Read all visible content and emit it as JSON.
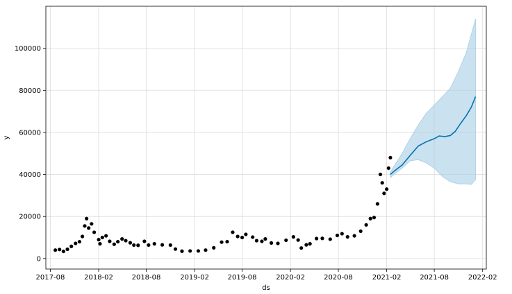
{
  "chart_data": {
    "type": "scatter",
    "title": "",
    "xlabel": "ds",
    "ylabel": "y",
    "grid": true,
    "xlim": [
      "2017-07-15",
      "2022-02-15"
    ],
    "ylim": [
      -5000,
      120000
    ],
    "x_ticks": [
      "2017-08",
      "2018-02",
      "2018-08",
      "2019-02",
      "2019-08",
      "2020-02",
      "2020-08",
      "2021-02",
      "2021-08",
      "2022-02"
    ],
    "y_ticks": [
      0,
      20000,
      40000,
      60000,
      80000,
      100000
    ],
    "colors": {
      "observed": "#000000",
      "forecast": "#0072B2",
      "interval": "#a6cde4"
    },
    "series": [
      {
        "kind": "observed points",
        "points": [
          [
            "2017-08-20",
            4000
          ],
          [
            "2017-09-05",
            4300
          ],
          [
            "2017-09-20",
            3400
          ],
          [
            "2017-10-05",
            4400
          ],
          [
            "2017-10-20",
            5800
          ],
          [
            "2017-11-05",
            7200
          ],
          [
            "2017-11-20",
            8000
          ],
          [
            "2017-12-01",
            10500
          ],
          [
            "2017-12-10",
            15500
          ],
          [
            "2017-12-17",
            19000
          ],
          [
            "2017-12-25",
            14500
          ],
          [
            "2018-01-05",
            16500
          ],
          [
            "2018-01-15",
            12500
          ],
          [
            "2018-02-01",
            9000
          ],
          [
            "2018-02-06",
            7000
          ],
          [
            "2018-02-15",
            10000
          ],
          [
            "2018-03-01",
            10800
          ],
          [
            "2018-03-15",
            8200
          ],
          [
            "2018-04-01",
            6800
          ],
          [
            "2018-04-15",
            8000
          ],
          [
            "2018-05-01",
            9300
          ],
          [
            "2018-05-15",
            8500
          ],
          [
            "2018-06-01",
            7500
          ],
          [
            "2018-06-15",
            6400
          ],
          [
            "2018-07-01",
            6300
          ],
          [
            "2018-07-25",
            8200
          ],
          [
            "2018-08-10",
            6400
          ],
          [
            "2018-09-01",
            7000
          ],
          [
            "2018-10-01",
            6500
          ],
          [
            "2018-11-01",
            6400
          ],
          [
            "2018-11-20",
            4500
          ],
          [
            "2018-12-15",
            3500
          ],
          [
            "2019-01-15",
            3600
          ],
          [
            "2019-02-15",
            3600
          ],
          [
            "2019-03-15",
            4000
          ],
          [
            "2019-04-15",
            5100
          ],
          [
            "2019-05-15",
            7800
          ],
          [
            "2019-06-05",
            8000
          ],
          [
            "2019-06-26",
            12500
          ],
          [
            "2019-07-15",
            10500
          ],
          [
            "2019-08-01",
            10000
          ],
          [
            "2019-08-15",
            11500
          ],
          [
            "2019-09-10",
            10200
          ],
          [
            "2019-09-25",
            8500
          ],
          [
            "2019-10-15",
            8200
          ],
          [
            "2019-10-28",
            9300
          ],
          [
            "2019-11-20",
            7400
          ],
          [
            "2019-12-15",
            7200
          ],
          [
            "2020-01-15",
            8700
          ],
          [
            "2020-02-12",
            10300
          ],
          [
            "2020-03-01",
            8800
          ],
          [
            "2020-03-13",
            5000
          ],
          [
            "2020-04-01",
            6500
          ],
          [
            "2020-04-15",
            7000
          ],
          [
            "2020-05-10",
            9500
          ],
          [
            "2020-06-01",
            9600
          ],
          [
            "2020-07-01",
            9200
          ],
          [
            "2020-07-28",
            11000
          ],
          [
            "2020-08-15",
            11800
          ],
          [
            "2020-09-05",
            10300
          ],
          [
            "2020-10-01",
            10800
          ],
          [
            "2020-10-25",
            13000
          ],
          [
            "2020-11-15",
            16000
          ],
          [
            "2020-12-01",
            19000
          ],
          [
            "2020-12-15",
            19500
          ],
          [
            "2020-12-28",
            26000
          ],
          [
            "2021-01-08",
            40000
          ],
          [
            "2021-01-15",
            36000
          ],
          [
            "2021-01-22",
            31000
          ],
          [
            "2021-02-01",
            33000
          ],
          [
            "2021-02-08",
            43000
          ],
          [
            "2021-02-15",
            48000
          ]
        ]
      },
      {
        "kind": "forecast line",
        "points": [
          [
            "2021-02-15",
            40000
          ],
          [
            "2021-03-01",
            41500
          ],
          [
            "2021-04-01",
            44500
          ],
          [
            "2021-05-01",
            49000
          ],
          [
            "2021-06-01",
            53500
          ],
          [
            "2021-07-01",
            55500
          ],
          [
            "2021-08-01",
            57000
          ],
          [
            "2021-08-20",
            58300
          ],
          [
            "2021-09-10",
            58000
          ],
          [
            "2021-10-01",
            58500
          ],
          [
            "2021-10-20",
            60500
          ],
          [
            "2021-11-05",
            63500
          ],
          [
            "2021-12-01",
            68000
          ],
          [
            "2021-12-20",
            72000
          ],
          [
            "2022-01-05",
            77000
          ]
        ]
      },
      {
        "kind": "uncertainty interval",
        "upper": [
          [
            "2021-02-15",
            41000
          ],
          [
            "2021-03-01",
            44000
          ],
          [
            "2021-04-01",
            50000
          ],
          [
            "2021-05-01",
            57000
          ],
          [
            "2021-06-01",
            63500
          ],
          [
            "2021-07-01",
            69000
          ],
          [
            "2021-08-01",
            73000
          ],
          [
            "2021-09-01",
            77000
          ],
          [
            "2021-10-01",
            81000
          ],
          [
            "2021-11-01",
            89000
          ],
          [
            "2021-12-01",
            98000
          ],
          [
            "2022-01-05",
            114000
          ]
        ],
        "lower": [
          [
            "2021-02-15",
            38500
          ],
          [
            "2021-03-01",
            40000
          ],
          [
            "2021-04-01",
            43000
          ],
          [
            "2021-05-01",
            46500
          ],
          [
            "2021-06-01",
            47000
          ],
          [
            "2021-07-01",
            45500
          ],
          [
            "2021-08-01",
            43000
          ],
          [
            "2021-09-01",
            39000
          ],
          [
            "2021-10-01",
            36500
          ],
          [
            "2021-11-01",
            35500
          ],
          [
            "2021-12-01",
            35500
          ],
          [
            "2021-12-20",
            35200
          ],
          [
            "2022-01-05",
            37500
          ]
        ]
      }
    ]
  }
}
